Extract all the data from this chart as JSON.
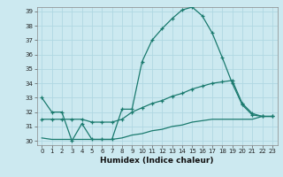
{
  "xlabel": "Humidex (Indice chaleur)",
  "ylabel": "",
  "background_color": "#cce9f0",
  "grid_color": "#b0d8e2",
  "line_color": "#1a7a6e",
  "xlim": [
    -0.5,
    23.5
  ],
  "ylim": [
    29.7,
    39.3
  ],
  "xticks": [
    0,
    1,
    2,
    3,
    4,
    5,
    6,
    7,
    8,
    9,
    10,
    11,
    12,
    13,
    14,
    15,
    16,
    17,
    18,
    19,
    20,
    21,
    22,
    23
  ],
  "yticks": [
    30,
    31,
    32,
    33,
    34,
    35,
    36,
    37,
    38,
    39
  ],
  "curve1_x": [
    0,
    1,
    2,
    3,
    4,
    5,
    6,
    7,
    8,
    9,
    10,
    11,
    12,
    13,
    14,
    15,
    16,
    17,
    18,
    19,
    20,
    21,
    22,
    23
  ],
  "curve1_y": [
    33.0,
    32.0,
    32.0,
    30.0,
    31.2,
    30.1,
    30.1,
    30.1,
    32.2,
    32.2,
    35.5,
    37.0,
    37.8,
    38.5,
    39.1,
    39.3,
    38.7,
    37.5,
    35.8,
    34.0,
    32.5,
    31.8,
    31.7,
    31.7
  ],
  "curve2_x": [
    0,
    1,
    2,
    3,
    4,
    5,
    6,
    7,
    8,
    9,
    10,
    11,
    12,
    13,
    14,
    15,
    16,
    17,
    18,
    19,
    20,
    21,
    22,
    23
  ],
  "curve2_y": [
    31.5,
    31.5,
    31.5,
    31.5,
    31.5,
    31.3,
    31.3,
    31.3,
    31.5,
    32.0,
    32.3,
    32.6,
    32.8,
    33.1,
    33.3,
    33.6,
    33.8,
    34.0,
    34.1,
    34.2,
    32.6,
    31.9,
    31.7,
    31.7
  ],
  "curve3_x": [
    0,
    1,
    2,
    3,
    4,
    5,
    6,
    7,
    8,
    9,
    10,
    11,
    12,
    13,
    14,
    15,
    16,
    17,
    18,
    19,
    20,
    21,
    22,
    23
  ],
  "curve3_y": [
    30.2,
    30.1,
    30.1,
    30.1,
    30.1,
    30.1,
    30.1,
    30.1,
    30.2,
    30.4,
    30.5,
    30.7,
    30.8,
    31.0,
    31.1,
    31.3,
    31.4,
    31.5,
    31.5,
    31.5,
    31.5,
    31.5,
    31.7,
    31.7
  ]
}
